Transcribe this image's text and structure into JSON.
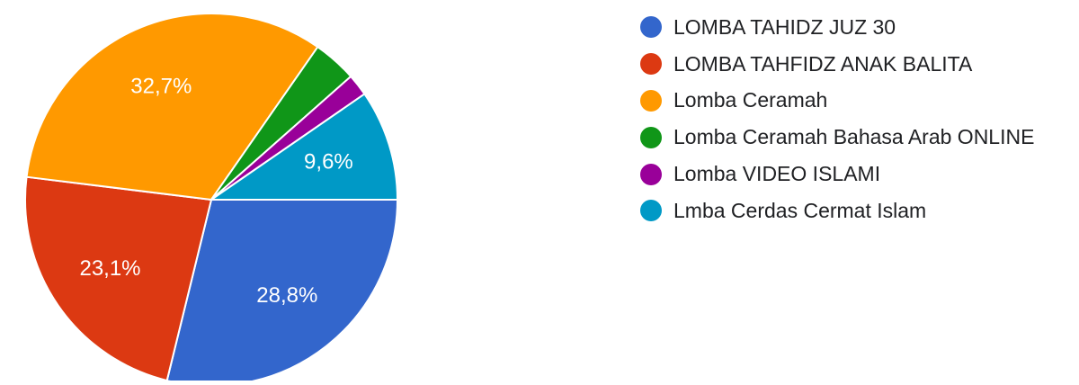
{
  "chart_data": {
    "type": "pie",
    "title": "",
    "slices": [
      {
        "label": "LOMBA TAHIDZ JUZ 30",
        "value": 28.8,
        "value_label": "28,8%",
        "color": "#3366cc"
      },
      {
        "label": "LOMBA TAHFIDZ ANAK BALITA",
        "value": 23.1,
        "value_label": "23,1%",
        "color": "#dc3912"
      },
      {
        "label": "Lomba Ceramah",
        "value": 32.7,
        "value_label": "32,7%",
        "color": "#ff9900"
      },
      {
        "label": "Lomba Ceramah Bahasa Arab ONLINE",
        "value": 3.8,
        "value_label": "",
        "color": "#109618"
      },
      {
        "label": "Lomba VIDEO ISLAMI",
        "value": 1.9,
        "value_label": "",
        "color": "#990099"
      },
      {
        "label": "Lmba Cerdas Cermat Islam",
        "value": 9.6,
        "value_label": "9,6%",
        "color": "#0099c6"
      }
    ],
    "legend_position": "right",
    "start_angle": "3 o'clock, clockwise"
  }
}
